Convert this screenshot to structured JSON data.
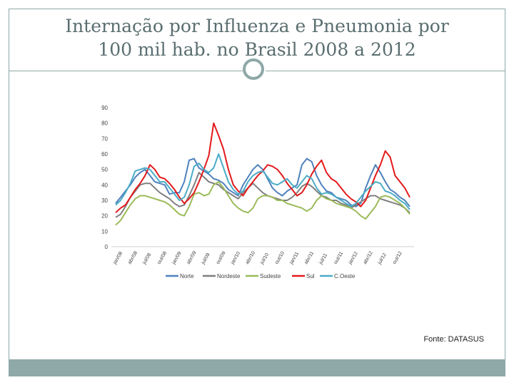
{
  "slide": {
    "title_line1": "Internação por Influenza e Pneumonia por",
    "title_line2": "100 mil hab. no Brasil 2008 a 2012",
    "source": "Fonte: DATASUS",
    "colors": {
      "frame": "#8fa8a8",
      "title": "#5a6e70"
    }
  },
  "chart_data": {
    "type": "line",
    "title": "",
    "xlabel": "",
    "ylabel": "",
    "ylim": [
      0,
      90
    ],
    "yticks": [
      0,
      10,
      20,
      30,
      40,
      50,
      60,
      70,
      80,
      90
    ],
    "grid": false,
    "legend": "bottom",
    "xtick_labels": [
      "jan/08",
      "abr/08",
      "jul/08",
      "out/08",
      "jan/09",
      "abr/09",
      "jul/09",
      "out/09",
      "jan/10",
      "abr/10",
      "jul/10",
      "out/10",
      "jan/11",
      "abr/11",
      "jul/11",
      "out/11",
      "jan/12",
      "abr/12",
      "jul/12",
      "out/12"
    ],
    "xtick_positions": [
      0,
      3,
      6,
      9,
      12,
      15,
      18,
      21,
      24,
      27,
      30,
      33,
      36,
      39,
      42,
      45,
      48,
      51,
      54,
      57
    ],
    "series": [
      {
        "name": "Norte",
        "color": "#4f81bd",
        "values": [
          28,
          32,
          36,
          40,
          45,
          48,
          50,
          46,
          42,
          41,
          40,
          34,
          35,
          35,
          42,
          56,
          57,
          51,
          49,
          47,
          44,
          43,
          41,
          37,
          35,
          33,
          40,
          45,
          50,
          53,
          50,
          44,
          38,
          35,
          33,
          36,
          38,
          40,
          53,
          57,
          55,
          46,
          40,
          36,
          35,
          32,
          31,
          30,
          27,
          26,
          28,
          38,
          46,
          53,
          48,
          42,
          37,
          35,
          32,
          30,
          26
        ]
      },
      {
        "name": "Nordeste",
        "color": "#7f7f7f",
        "values": [
          19,
          21,
          26,
          32,
          36,
          40,
          41,
          41,
          38,
          35,
          33,
          31,
          28,
          26,
          27,
          33,
          40,
          48,
          45,
          42,
          41,
          40,
          37,
          35,
          33,
          31,
          35,
          38,
          41,
          38,
          35,
          33,
          32,
          31,
          30,
          30,
          32,
          35,
          39,
          41,
          39,
          36,
          33,
          32,
          30,
          30,
          28,
          27,
          25,
          27,
          29,
          31,
          33,
          33,
          31,
          30,
          29,
          28,
          27,
          25,
          22
        ]
      },
      {
        "name": "Sudeste",
        "color": "#9bbb59",
        "values": [
          14,
          17,
          22,
          27,
          31,
          33,
          33,
          32,
          31,
          30,
          29,
          27,
          24,
          21,
          20,
          26,
          34,
          35,
          33,
          34,
          40,
          42,
          38,
          33,
          28,
          25,
          23,
          22,
          25,
          31,
          33,
          33,
          32,
          30,
          30,
          28,
          27,
          26,
          25,
          23,
          25,
          30,
          33,
          31,
          30,
          28,
          27,
          26,
          25,
          23,
          20,
          18,
          22,
          26,
          32,
          33,
          32,
          30,
          28,
          25,
          21
        ]
      },
      {
        "name": "Sul",
        "color": "#e31a1c",
        "values": [
          22,
          25,
          27,
          32,
          37,
          41,
          46,
          53,
          50,
          45,
          44,
          41,
          37,
          32,
          28,
          31,
          35,
          42,
          50,
          59,
          80,
          72,
          63,
          50,
          40,
          36,
          33,
          38,
          42,
          46,
          49,
          53,
          52,
          50,
          46,
          41,
          37,
          33,
          35,
          40,
          47,
          52,
          56,
          48,
          44,
          42,
          38,
          34,
          31,
          29,
          26,
          30,
          38,
          46,
          53,
          62,
          58,
          46,
          42,
          38,
          32
        ]
      },
      {
        "name": "C.Oeste",
        "color": "#4bacc6",
        "values": [
          27,
          30,
          35,
          41,
          49,
          50,
          51,
          50,
          46,
          42,
          42,
          38,
          34,
          30,
          32,
          40,
          52,
          54,
          50,
          48,
          51,
          60,
          51,
          42,
          37,
          34,
          36,
          42,
          46,
          48,
          49,
          45,
          41,
          40,
          42,
          44,
          40,
          38,
          42,
          46,
          44,
          38,
          34,
          35,
          34,
          32,
          30,
          28,
          26,
          28,
          32,
          36,
          39,
          42,
          41,
          36,
          35,
          33,
          30,
          28,
          24
        ]
      }
    ]
  }
}
